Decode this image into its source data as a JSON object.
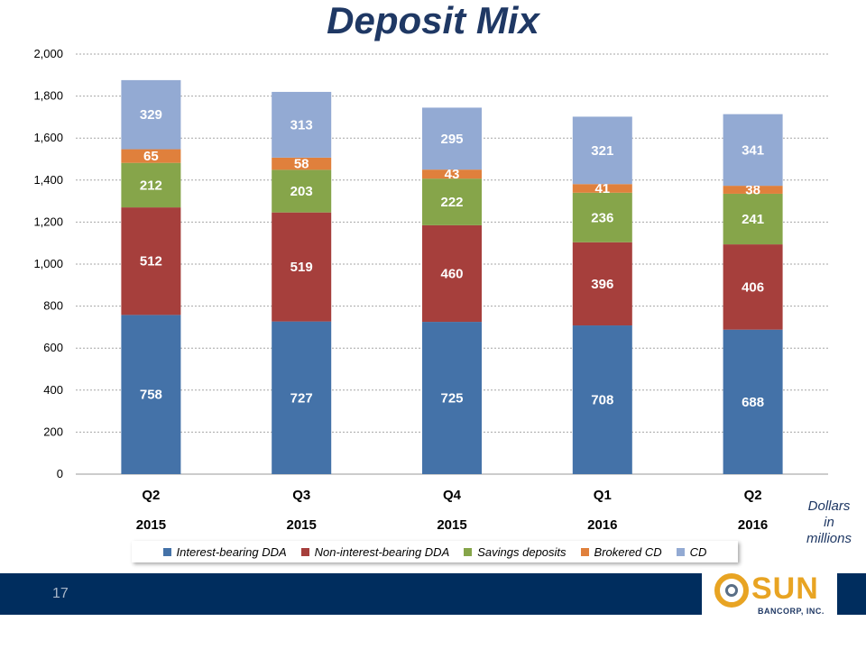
{
  "title": "Deposit Mix",
  "page_number": "17",
  "units_note": [
    "Dollars",
    "in",
    "millions"
  ],
  "logo": {
    "name": "SUN",
    "subtitle": "BANCORP, INC."
  },
  "colors": {
    "title": "#1f3864",
    "interest_bearing_dda": "#4472a8",
    "non_interest_bearing_dda": "#a63f3c",
    "savings_deposits": "#86a54a",
    "brokered_cd": "#e0803c",
    "cd": "#93aad3",
    "footer": "#002d5e",
    "logo": "#e8a423"
  },
  "chart_data": {
    "type": "bar",
    "stacked": true,
    "title": "Deposit Mix",
    "categories": [
      {
        "quarter": "Q2",
        "year": "2015"
      },
      {
        "quarter": "Q3",
        "year": "2015"
      },
      {
        "quarter": "Q4",
        "year": "2015"
      },
      {
        "quarter": "Q1",
        "year": "2016"
      },
      {
        "quarter": "Q2",
        "year": "2016"
      }
    ],
    "series": [
      {
        "name": "Interest-bearing DDA",
        "color": "#4472a8",
        "values": [
          758,
          727,
          725,
          708,
          688
        ]
      },
      {
        "name": "Non-interest-bearing DDA",
        "color": "#a63f3c",
        "values": [
          512,
          519,
          460,
          396,
          406
        ]
      },
      {
        "name": "Savings deposits",
        "color": "#86a54a",
        "values": [
          212,
          203,
          222,
          236,
          241
        ]
      },
      {
        "name": "Brokered CD",
        "color": "#e0803c",
        "values": [
          65,
          58,
          43,
          41,
          38
        ]
      },
      {
        "name": "CD",
        "color": "#93aad3",
        "values": [
          329,
          313,
          295,
          321,
          341
        ]
      }
    ],
    "ylim": [
      0,
      2000
    ],
    "yticks": [
      "0",
      "200",
      "400",
      "600",
      "800",
      "1,000",
      "1,200",
      "1,400",
      "1,600",
      "1,800",
      "2,000"
    ],
    "ytick_values": [
      0,
      200,
      400,
      600,
      800,
      1000,
      1200,
      1400,
      1600,
      1800,
      2000
    ],
    "grid": true,
    "legend_position": "bottom"
  }
}
